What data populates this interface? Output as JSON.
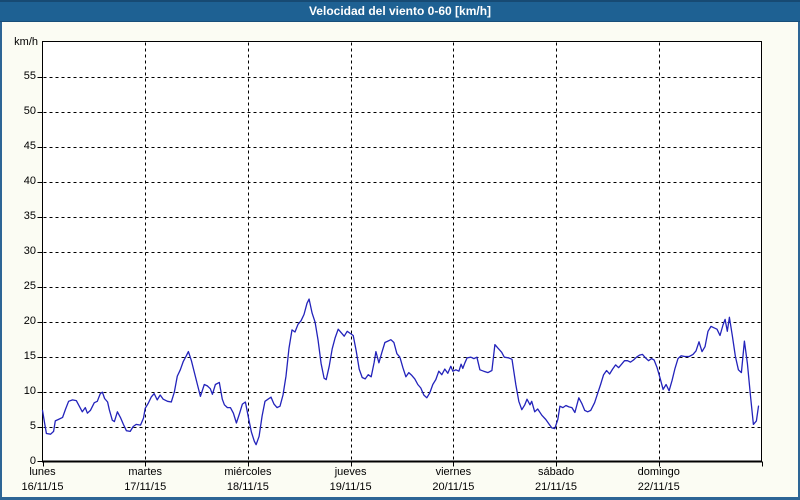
{
  "title_bar": {
    "title": "Velocidad del viento 0-60 [km/h]"
  },
  "colors": {
    "titlebar_bg": "#1e6193",
    "titlebar_text": "#ffffff",
    "window_border": "#2d6595",
    "page_bg": "#fbfcf3",
    "plot_bg": "#ffffff",
    "grid": "#000000",
    "axis": "#000000",
    "line": "#2323bb",
    "label_text": "#000000"
  },
  "chart_data": {
    "type": "line",
    "title": "Velocidad del viento 0-60 [km/h]",
    "ylabel": "km/h",
    "xlabel": "",
    "ylim": [
      0,
      60
    ],
    "ytick_step": 5,
    "yticks_labeled": [
      0,
      5,
      10,
      15,
      20,
      25,
      30,
      35,
      40,
      45,
      50,
      55
    ],
    "grid": "dashed",
    "legend": "none",
    "x_axis": {
      "unit": "hours_from_monday_00h",
      "total_hours": 168,
      "days": [
        {
          "name": "lunes",
          "date": "16/11/15"
        },
        {
          "name": "martes",
          "date": "17/11/15"
        },
        {
          "name": "miércoles",
          "date": "18/11/15"
        },
        {
          "name": "jueves",
          "date": "19/11/15"
        },
        {
          "name": "viernes",
          "date": "20/11/15"
        },
        {
          "name": "sábado",
          "date": "21/11/15"
        },
        {
          "name": "domingo",
          "date": "22/11/15"
        }
      ]
    },
    "series": [
      {
        "name": "Velocidad del viento",
        "color": "#2323bb",
        "points": [
          [
            0,
            7.3
          ],
          [
            0.5,
            5.5
          ],
          [
            0.9,
            4
          ],
          [
            1.9,
            3.9
          ],
          [
            2.6,
            4.3
          ],
          [
            3,
            5.8
          ],
          [
            3.7,
            6
          ],
          [
            4.7,
            6.3
          ],
          [
            5.4,
            7.5
          ],
          [
            6.1,
            8.6
          ],
          [
            7,
            8.8
          ],
          [
            7.9,
            8.7
          ],
          [
            8.6,
            7.9
          ],
          [
            9.3,
            7.1
          ],
          [
            10,
            7.7
          ],
          [
            10.5,
            6.9
          ],
          [
            11.2,
            7.3
          ],
          [
            12.1,
            8.4
          ],
          [
            12.8,
            8.6
          ],
          [
            13.5,
            9.7
          ],
          [
            14,
            9.9
          ],
          [
            14.5,
            9
          ],
          [
            15.2,
            8.5
          ],
          [
            15.6,
            7.4
          ],
          [
            16.3,
            5.9
          ],
          [
            16.8,
            5.7
          ],
          [
            17.5,
            7.1
          ],
          [
            18.2,
            6.3
          ],
          [
            18.9,
            5.3
          ],
          [
            19.6,
            4.4
          ],
          [
            20.5,
            4.3
          ],
          [
            21.2,
            5
          ],
          [
            21.9,
            5.3
          ],
          [
            22.9,
            5.2
          ],
          [
            23.6,
            6.2
          ],
          [
            24,
            7.6
          ],
          [
            24.7,
            8.3
          ],
          [
            25.4,
            9.2
          ],
          [
            26.1,
            9.7
          ],
          [
            26.8,
            8.8
          ],
          [
            27.5,
            9.5
          ],
          [
            28.2,
            8.9
          ],
          [
            29.2,
            8.6
          ],
          [
            30.1,
            8.5
          ],
          [
            30.8,
            9.9
          ],
          [
            31.5,
            12.2
          ],
          [
            32.2,
            13.1
          ],
          [
            32.9,
            14.3
          ],
          [
            33.6,
            15.1
          ],
          [
            34.1,
            15.7
          ],
          [
            34.8,
            14.4
          ],
          [
            35.5,
            12.7
          ],
          [
            36.2,
            11
          ],
          [
            36.9,
            9.3
          ],
          [
            37.8,
            11
          ],
          [
            38.5,
            10.8
          ],
          [
            39.2,
            10.4
          ],
          [
            39.7,
            9.6
          ],
          [
            40.4,
            11
          ],
          [
            41.3,
            11.3
          ],
          [
            42,
            8.9
          ],
          [
            42.5,
            8.1
          ],
          [
            43.2,
            7.7
          ],
          [
            43.9,
            7.7
          ],
          [
            44.6,
            6.9
          ],
          [
            45.3,
            5.5
          ],
          [
            46,
            6.8
          ],
          [
            46.7,
            8.2
          ],
          [
            47.4,
            8.5
          ],
          [
            48.1,
            6.3
          ],
          [
            48.8,
            4.2
          ],
          [
            49.5,
            2.9
          ],
          [
            49.9,
            2.4
          ],
          [
            50.6,
            3.6
          ],
          [
            51.3,
            6.5
          ],
          [
            52,
            8.6
          ],
          [
            52.7,
            8.9
          ],
          [
            53.4,
            9.2
          ],
          [
            54.1,
            8.2
          ],
          [
            54.8,
            7.7
          ],
          [
            55.5,
            7.9
          ],
          [
            56.2,
            9.5
          ],
          [
            56.9,
            12.2
          ],
          [
            57.6,
            16.2
          ],
          [
            58.3,
            18.8
          ],
          [
            59,
            18.5
          ],
          [
            59.7,
            19.6
          ],
          [
            60.4,
            20.1
          ],
          [
            61.1,
            21
          ],
          [
            61.8,
            22.6
          ],
          [
            62.3,
            23.2
          ],
          [
            63,
            21.2
          ],
          [
            63.7,
            19.9
          ],
          [
            64.4,
            17.3
          ],
          [
            65.1,
            14
          ],
          [
            65.8,
            11.9
          ],
          [
            66.3,
            11.7
          ],
          [
            67,
            13.6
          ],
          [
            67.7,
            16.1
          ],
          [
            68.4,
            17.7
          ],
          [
            69.1,
            18.9
          ],
          [
            69.8,
            18.4
          ],
          [
            70.5,
            17.9
          ],
          [
            71.2,
            18.6
          ],
          [
            71.9,
            18.3
          ],
          [
            72.6,
            18
          ],
          [
            73.3,
            15.8
          ],
          [
            74,
            13.2
          ],
          [
            74.7,
            12
          ],
          [
            75.4,
            11.8
          ],
          [
            76.1,
            12.4
          ],
          [
            76.8,
            12.1
          ],
          [
            77.5,
            14.2
          ],
          [
            77.9,
            15.7
          ],
          [
            78.6,
            14.1
          ],
          [
            79.3,
            15.6
          ],
          [
            80,
            17
          ],
          [
            80.7,
            17.2
          ],
          [
            81.4,
            17.4
          ],
          [
            82.1,
            17
          ],
          [
            82.8,
            15.4
          ],
          [
            83.5,
            14.9
          ],
          [
            84.2,
            13.4
          ],
          [
            84.9,
            12.1
          ],
          [
            85.6,
            12.7
          ],
          [
            86.3,
            12.3
          ],
          [
            87,
            11.8
          ],
          [
            87.7,
            11
          ],
          [
            88.4,
            10.5
          ],
          [
            89.1,
            9.5
          ],
          [
            89.8,
            9.1
          ],
          [
            90.5,
            9.8
          ],
          [
            91.2,
            11
          ],
          [
            91.9,
            11.7
          ],
          [
            92.6,
            12.9
          ],
          [
            93.3,
            12.4
          ],
          [
            94,
            13.2
          ],
          [
            94.7,
            12.6
          ],
          [
            95.4,
            13.6
          ],
          [
            95.9,
            12.9
          ],
          [
            96.6,
            13.1
          ],
          [
            97.3,
            12.9
          ],
          [
            97.8,
            13.9
          ],
          [
            98.2,
            13.3
          ],
          [
            98.7,
            14.1
          ],
          [
            99.2,
            14.8
          ],
          [
            100.1,
            14.9
          ],
          [
            100.8,
            14.7
          ],
          [
            101.5,
            14.9
          ],
          [
            102.2,
            13.1
          ],
          [
            103.1,
            12.9
          ],
          [
            104.1,
            12.7
          ],
          [
            105,
            13
          ],
          [
            105.7,
            16.7
          ],
          [
            106.4,
            16.2
          ],
          [
            107.3,
            15.6
          ],
          [
            107.9,
            14.9
          ],
          [
            108.9,
            14.8
          ],
          [
            109.7,
            14.6
          ],
          [
            110.6,
            11
          ],
          [
            111.3,
            8.6
          ],
          [
            112,
            7.4
          ],
          [
            112.7,
            8.1
          ],
          [
            113.2,
            8.9
          ],
          [
            113.9,
            8.1
          ],
          [
            114.3,
            8.6
          ],
          [
            115,
            7.1
          ],
          [
            115.7,
            7.5
          ],
          [
            116.7,
            6.6
          ],
          [
            117.6,
            6
          ],
          [
            118.3,
            5.4
          ],
          [
            119,
            4.8
          ],
          [
            119.7,
            4.7
          ],
          [
            120.4,
            6
          ],
          [
            120.9,
            7.9
          ],
          [
            121.6,
            7.7
          ],
          [
            122.3,
            8
          ],
          [
            123,
            7.8
          ],
          [
            123.7,
            7.7
          ],
          [
            124.4,
            7
          ],
          [
            125.3,
            9.1
          ],
          [
            126,
            8.3
          ],
          [
            126.7,
            7.3
          ],
          [
            127.4,
            7.1
          ],
          [
            128.1,
            7.3
          ],
          [
            129,
            8.4
          ],
          [
            129.7,
            9.7
          ],
          [
            130.4,
            11
          ],
          [
            131.1,
            12.4
          ],
          [
            131.8,
            13
          ],
          [
            132.5,
            12.5
          ],
          [
            133.2,
            13.2
          ],
          [
            133.9,
            13.8
          ],
          [
            134.6,
            13.4
          ],
          [
            135.3,
            13.9
          ],
          [
            136,
            14.4
          ],
          [
            136.7,
            14.4
          ],
          [
            137.4,
            14.2
          ],
          [
            138.1,
            14.5
          ],
          [
            138.8,
            14.9
          ],
          [
            139.5,
            15.2
          ],
          [
            140.2,
            15.3
          ],
          [
            140.9,
            14.8
          ],
          [
            141.6,
            14.4
          ],
          [
            142.3,
            14.7
          ],
          [
            142.9,
            14.5
          ],
          [
            143.6,
            13.4
          ],
          [
            144.3,
            11.9
          ],
          [
            145,
            10.3
          ],
          [
            145.7,
            11
          ],
          [
            146.4,
            10.1
          ],
          [
            147.1,
            11.6
          ],
          [
            147.8,
            13.3
          ],
          [
            148.5,
            14.7
          ],
          [
            149.2,
            15.1
          ],
          [
            150.1,
            15
          ],
          [
            151.1,
            15
          ],
          [
            152,
            15.3
          ],
          [
            152.7,
            15.8
          ],
          [
            153.4,
            17.1
          ],
          [
            154.1,
            15.7
          ],
          [
            154.8,
            16.4
          ],
          [
            155.5,
            18.6
          ],
          [
            156.2,
            19.3
          ],
          [
            156.9,
            19.1
          ],
          [
            157.6,
            18.9
          ],
          [
            158.3,
            18
          ],
          [
            159,
            19.5
          ],
          [
            159.5,
            20.3
          ],
          [
            160,
            18.6
          ],
          [
            160.5,
            20.6
          ],
          [
            161.2,
            17.9
          ],
          [
            161.9,
            15
          ],
          [
            162.6,
            13.1
          ],
          [
            163.3,
            12.7
          ],
          [
            164,
            17.2
          ],
          [
            164.7,
            14
          ],
          [
            165.4,
            9.5
          ],
          [
            166.1,
            5.3
          ],
          [
            166.8,
            5.8
          ],
          [
            167.3,
            7.9
          ]
        ]
      }
    ]
  }
}
